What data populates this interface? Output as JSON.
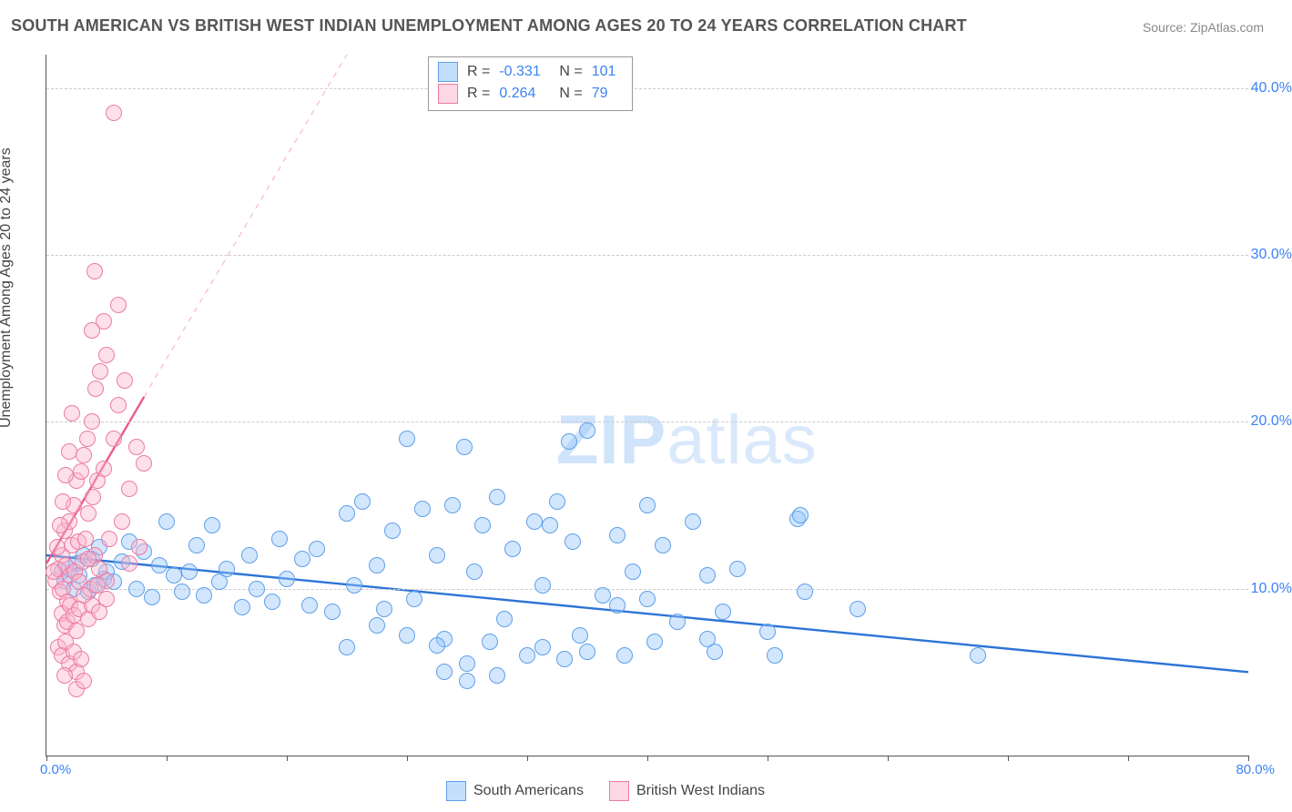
{
  "title": "SOUTH AMERICAN VS BRITISH WEST INDIAN UNEMPLOYMENT AMONG AGES 20 TO 24 YEARS CORRELATION CHART",
  "source_label": "Source:",
  "source_name": "ZipAtlas.com",
  "ylabel": "Unemployment Among Ages 20 to 24 years",
  "watermark_a": "ZIP",
  "watermark_b": "atlas",
  "chart": {
    "type": "scatter",
    "xlim": [
      0,
      80
    ],
    "ylim": [
      0,
      42
    ],
    "x_origin_label": "0.0%",
    "x_max_label": "80.0%",
    "y_ticks": [
      10,
      20,
      30,
      40
    ],
    "y_tick_labels": [
      "10.0%",
      "20.0%",
      "30.0%",
      "40.0%"
    ],
    "x_tick_marks": [
      0,
      8,
      16,
      24,
      32,
      40,
      48,
      56,
      64,
      72,
      80
    ],
    "grid_color": "#cccccc",
    "axis_color": "#555555",
    "tick_label_color": "#3b82f6",
    "background_color": "#ffffff",
    "marker_radius": 9,
    "marker_border_width": 1.2,
    "series": [
      {
        "name": "South Americans",
        "fill": "rgba(147,197,253,0.42)",
        "stroke": "#5f9fe8",
        "trend": {
          "x1": 0,
          "y1": 12.0,
          "x2": 80,
          "y2": 5.0,
          "color": "#2d74d6",
          "width": 2.4,
          "dash": "none"
        },
        "points": [
          [
            1.0,
            11.0
          ],
          [
            1.2,
            10.5
          ],
          [
            1.5,
            11.2
          ],
          [
            1.8,
            10.0
          ],
          [
            2.0,
            11.5
          ],
          [
            2.2,
            10.8
          ],
          [
            2.5,
            12.0
          ],
          [
            2.8,
            9.8
          ],
          [
            3.0,
            11.8
          ],
          [
            3.2,
            10.2
          ],
          [
            3.5,
            12.5
          ],
          [
            3.8,
            10.6
          ],
          [
            4.0,
            11.0
          ],
          [
            4.5,
            10.4
          ],
          [
            5.0,
            11.6
          ],
          [
            5.5,
            12.8
          ],
          [
            6.0,
            10.0
          ],
          [
            6.5,
            12.2
          ],
          [
            7.0,
            9.5
          ],
          [
            7.5,
            11.4
          ],
          [
            8.0,
            14.0
          ],
          [
            8.5,
            10.8
          ],
          [
            9.0,
            9.8
          ],
          [
            9.5,
            11.0
          ],
          [
            10.0,
            12.6
          ],
          [
            10.5,
            9.6
          ],
          [
            11.0,
            13.8
          ],
          [
            11.5,
            10.4
          ],
          [
            12.0,
            11.2
          ],
          [
            13.0,
            8.9
          ],
          [
            13.5,
            12.0
          ],
          [
            14.0,
            10.0
          ],
          [
            15.0,
            9.2
          ],
          [
            15.5,
            13.0
          ],
          [
            16.0,
            10.6
          ],
          [
            17.0,
            11.8
          ],
          [
            17.5,
            9.0
          ],
          [
            18.0,
            12.4
          ],
          [
            19.0,
            8.6
          ],
          [
            20.0,
            14.5
          ],
          [
            20.5,
            10.2
          ],
          [
            21.0,
            15.2
          ],
          [
            22.0,
            11.4
          ],
          [
            22.5,
            8.8
          ],
          [
            23.0,
            13.5
          ],
          [
            24.0,
            19.0
          ],
          [
            24.5,
            9.4
          ],
          [
            25.0,
            14.8
          ],
          [
            26.0,
            12.0
          ],
          [
            26.5,
            7.0
          ],
          [
            27.0,
            15.0
          ],
          [
            27.8,
            18.5
          ],
          [
            28.0,
            5.5
          ],
          [
            28.5,
            11.0
          ],
          [
            29.0,
            13.8
          ],
          [
            30.0,
            15.5
          ],
          [
            30.5,
            8.2
          ],
          [
            31.0,
            12.4
          ],
          [
            32.0,
            6.0
          ],
          [
            32.5,
            14.0
          ],
          [
            33.0,
            10.2
          ],
          [
            34.0,
            15.2
          ],
          [
            35.0,
            12.8
          ],
          [
            35.5,
            7.2
          ],
          [
            36.0,
            19.5
          ],
          [
            37.0,
            9.6
          ],
          [
            38.0,
            13.2
          ],
          [
            38.5,
            6.0
          ],
          [
            39.0,
            11.0
          ],
          [
            40.0,
            9.4
          ],
          [
            41.0,
            12.6
          ],
          [
            42.0,
            8.0
          ],
          [
            43.0,
            14.0
          ],
          [
            44.0,
            10.8
          ],
          [
            44.5,
            6.2
          ],
          [
            45.0,
            8.6
          ],
          [
            46.0,
            11.2
          ],
          [
            48.0,
            7.4
          ],
          [
            50.0,
            14.2
          ],
          [
            50.2,
            14.4
          ],
          [
            33.0,
            6.5
          ],
          [
            34.5,
            5.8
          ],
          [
            36.0,
            6.2
          ],
          [
            29.5,
            6.8
          ],
          [
            24.0,
            7.2
          ],
          [
            26.0,
            6.6
          ],
          [
            38.0,
            9.0
          ],
          [
            26.5,
            5.0
          ],
          [
            30.0,
            4.8
          ],
          [
            28.0,
            4.5
          ],
          [
            50.5,
            9.8
          ],
          [
            54.0,
            8.8
          ],
          [
            40.5,
            6.8
          ],
          [
            44.0,
            7.0
          ],
          [
            48.5,
            6.0
          ],
          [
            62.0,
            6.0
          ],
          [
            40.0,
            15.0
          ],
          [
            33.5,
            13.8
          ],
          [
            34.8,
            18.8
          ],
          [
            22.0,
            7.8
          ],
          [
            20.0,
            6.5
          ]
        ]
      },
      {
        "name": "British West Indians",
        "fill": "rgba(251,182,206,0.42)",
        "stroke": "#ec7ba3",
        "trend_solid": {
          "x1": 0,
          "y1": 11.5,
          "x2": 6.5,
          "y2": 21.5,
          "color": "#ec5a8b",
          "width": 2.4
        },
        "trend_dash": {
          "x1": 6.5,
          "y1": 21.5,
          "x2": 20.0,
          "y2": 42.0,
          "color": "#f7b9cd",
          "width": 1.2
        },
        "points": [
          [
            0.6,
            10.5
          ],
          [
            0.8,
            11.2
          ],
          [
            0.9,
            9.8
          ],
          [
            1.0,
            12.0
          ],
          [
            1.1,
            10.0
          ],
          [
            1.2,
            13.5
          ],
          [
            1.3,
            11.4
          ],
          [
            1.4,
            9.2
          ],
          [
            1.5,
            14.0
          ],
          [
            1.6,
            10.8
          ],
          [
            1.7,
            12.6
          ],
          [
            1.8,
            15.0
          ],
          [
            1.9,
            11.0
          ],
          [
            2.0,
            16.5
          ],
          [
            2.1,
            12.8
          ],
          [
            2.2,
            10.4
          ],
          [
            2.3,
            17.0
          ],
          [
            2.4,
            11.6
          ],
          [
            2.5,
            18.0
          ],
          [
            2.6,
            13.0
          ],
          [
            2.7,
            19.0
          ],
          [
            2.8,
            14.5
          ],
          [
            2.9,
            10.0
          ],
          [
            3.0,
            20.0
          ],
          [
            3.1,
            15.5
          ],
          [
            3.2,
            12.0
          ],
          [
            3.3,
            22.0
          ],
          [
            3.4,
            16.5
          ],
          [
            3.5,
            11.2
          ],
          [
            3.6,
            23.0
          ],
          [
            3.8,
            17.2
          ],
          [
            4.0,
            24.0
          ],
          [
            4.2,
            13.0
          ],
          [
            4.5,
            19.0
          ],
          [
            4.8,
            21.0
          ],
          [
            5.0,
            14.0
          ],
          [
            5.2,
            22.5
          ],
          [
            5.5,
            16.0
          ],
          [
            6.0,
            18.5
          ],
          [
            1.0,
            8.5
          ],
          [
            1.2,
            7.8
          ],
          [
            1.4,
            8.0
          ],
          [
            1.6,
            9.0
          ],
          [
            1.8,
            8.4
          ],
          [
            2.0,
            7.5
          ],
          [
            2.2,
            8.8
          ],
          [
            0.8,
            6.5
          ],
          [
            1.0,
            6.0
          ],
          [
            1.3,
            6.8
          ],
          [
            1.5,
            5.5
          ],
          [
            1.8,
            6.2
          ],
          [
            2.0,
            5.0
          ],
          [
            2.3,
            5.8
          ],
          [
            0.7,
            12.5
          ],
          [
            0.9,
            13.8
          ],
          [
            1.1,
            15.2
          ],
          [
            1.3,
            16.8
          ],
          [
            1.5,
            18.2
          ],
          [
            2.8,
            8.2
          ],
          [
            3.0,
            9.0
          ],
          [
            3.5,
            8.6
          ],
          [
            4.0,
            9.4
          ],
          [
            2.5,
            9.6
          ],
          [
            6.5,
            17.5
          ],
          [
            3.8,
            26.0
          ],
          [
            3.2,
            29.0
          ],
          [
            3.0,
            25.5
          ],
          [
            4.8,
            27.0
          ],
          [
            4.0,
            10.5
          ],
          [
            5.5,
            11.5
          ],
          [
            6.2,
            12.5
          ],
          [
            1.7,
            20.5
          ],
          [
            4.5,
            38.5
          ],
          [
            2.0,
            4.0
          ],
          [
            2.5,
            4.5
          ],
          [
            1.2,
            4.8
          ],
          [
            2.8,
            11.8
          ],
          [
            3.4,
            10.2
          ],
          [
            0.5,
            11.0
          ]
        ]
      }
    ]
  },
  "legend_top": {
    "rows": [
      {
        "swatch_fill": "rgba(147,197,253,0.55)",
        "swatch_stroke": "#5f9fe8",
        "r_label": "R =",
        "r_val": "-0.331",
        "n_label": "N =",
        "n_val": "101"
      },
      {
        "swatch_fill": "rgba(251,182,206,0.55)",
        "swatch_stroke": "#ec7ba3",
        "r_label": "R =",
        "r_val": "0.264",
        "n_label": "N =",
        "n_val": "79"
      }
    ]
  },
  "legend_bottom": {
    "items": [
      {
        "swatch_fill": "rgba(147,197,253,0.55)",
        "swatch_stroke": "#5f9fe8",
        "label": "South Americans"
      },
      {
        "swatch_fill": "rgba(251,182,206,0.55)",
        "swatch_stroke": "#ec7ba3",
        "label": "British West Indians"
      }
    ]
  }
}
